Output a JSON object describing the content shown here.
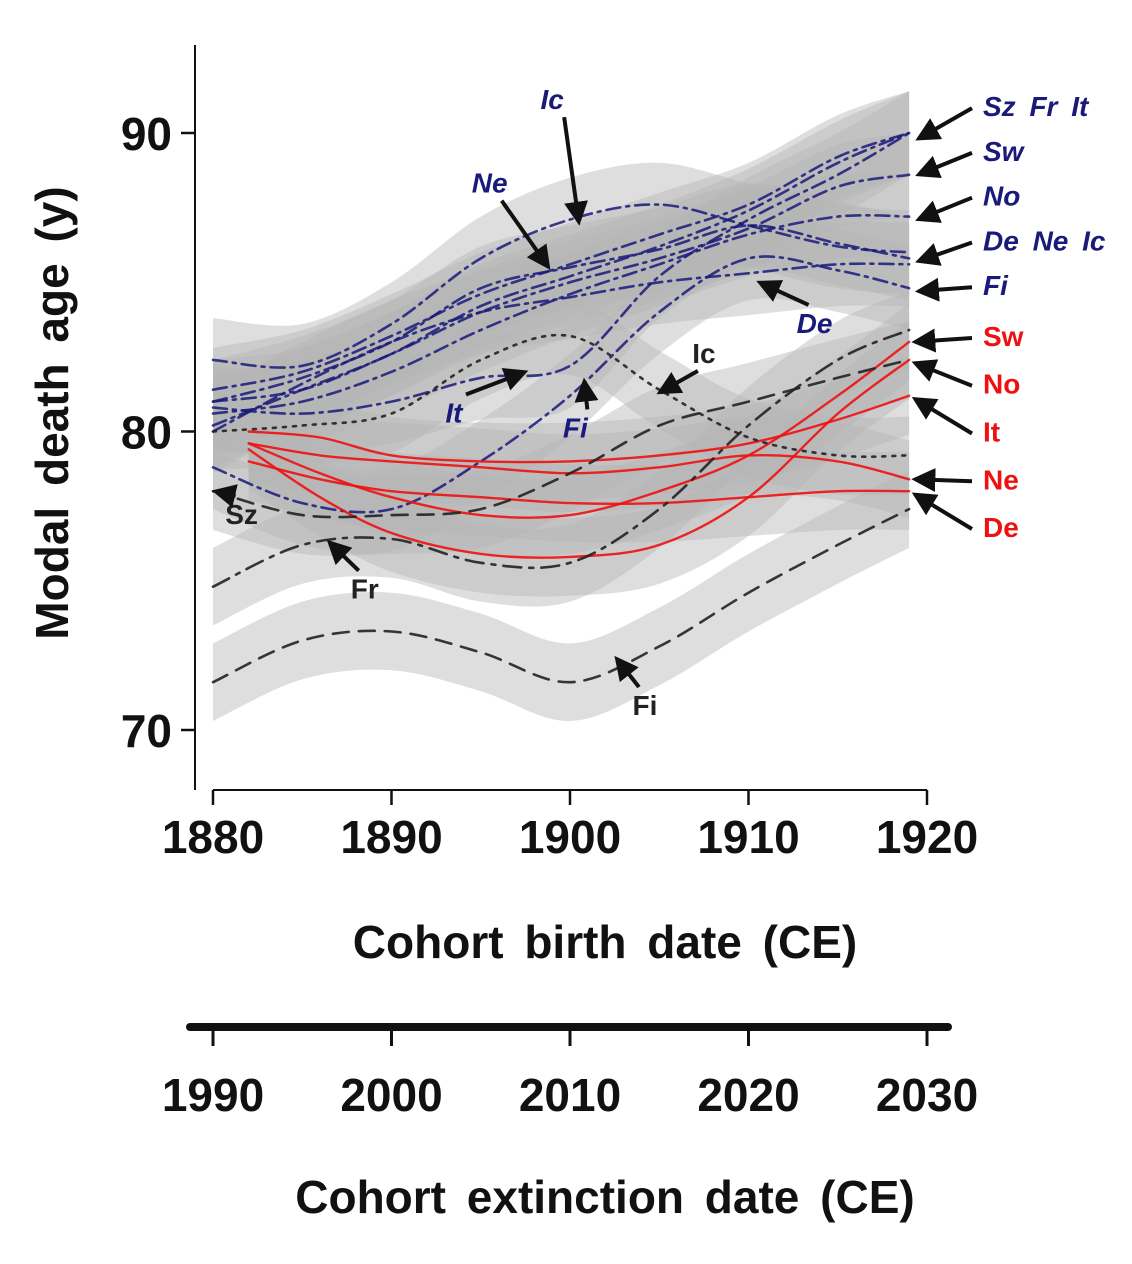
{
  "chart_data": {
    "type": "line",
    "xlabel": "Cohort birth date (CE)",
    "ylabel": "Modal death age (y)",
    "secondary_xlabel": "Cohort extinction date (CE)",
    "xlim": [
      1880,
      1920
    ],
    "ylim": [
      68,
      93
    ],
    "x_ticks": [
      1880,
      1890,
      1900,
      1910,
      1920
    ],
    "y_ticks": [
      70,
      80,
      90
    ],
    "secondary_x_ticks": [
      1990,
      2000,
      2010,
      2020,
      2030
    ],
    "colors": {
      "female": "#1a1a7a",
      "male_gaps": "#ee1111",
      "male": "#222222",
      "band": "#b5b5b5"
    },
    "groups": [
      {
        "name": "female",
        "color": "#1a1a7a",
        "labels": [
          "Sz Fr It",
          "Sw",
          "No",
          "De Ne Ic",
          "Fi"
        ],
        "series": [
          {
            "name": "Ic",
            "x": [
              1880,
              1885,
              1890,
              1895,
              1900,
              1905,
              1910,
              1915,
              1919
            ],
            "y": [
              82.4,
              82.2,
              83.6,
              85.8,
              87.1,
              87.6,
              86.9,
              86.2,
              86.0
            ]
          },
          {
            "name": "Ne",
            "x": [
              1880,
              1885,
              1890,
              1895,
              1900,
              1905,
              1910,
              1915,
              1919
            ],
            "y": [
              81.0,
              81.8,
              83.0,
              84.8,
              85.5,
              86.1,
              86.9,
              86.3,
              85.8
            ]
          },
          {
            "name": "It",
            "x": [
              1880,
              1885,
              1890,
              1895,
              1900,
              1905,
              1910,
              1915,
              1919
            ],
            "y": [
              80.8,
              80.6,
              81.0,
              81.8,
              82.2,
              85.2,
              87.1,
              88.6,
              90.0
            ]
          },
          {
            "name": "Fi",
            "x": [
              1880,
              1885,
              1890,
              1895,
              1900,
              1905,
              1910,
              1915,
              1919
            ],
            "y": [
              78.8,
              77.6,
              77.4,
              79.0,
              81.2,
              84.0,
              85.8,
              85.4,
              84.8
            ]
          },
          {
            "name": "De",
            "x": [
              1880,
              1885,
              1890,
              1895,
              1900,
              1905,
              1910,
              1915,
              1919
            ],
            "y": [
              80.0,
              81.6,
              83.0,
              84.0,
              84.5,
              85.0,
              85.3,
              85.6,
              85.6
            ]
          },
          {
            "name": "Sz",
            "x": [
              1880,
              1885,
              1890,
              1895,
              1900,
              1905,
              1910,
              1915,
              1919
            ],
            "y": [
              80.2,
              81.4,
              82.6,
              84.2,
              85.2,
              86.2,
              87.4,
              89.0,
              90.0
            ]
          },
          {
            "name": "Fr",
            "x": [
              1880,
              1885,
              1890,
              1895,
              1900,
              1905,
              1910,
              1915,
              1919
            ],
            "y": [
              81.4,
              82.0,
              83.2,
              84.6,
              85.6,
              86.6,
              87.6,
              89.2,
              90.0
            ]
          },
          {
            "name": "Sw",
            "x": [
              1880,
              1885,
              1890,
              1895,
              1900,
              1905,
              1910,
              1915,
              1919
            ],
            "y": [
              81.0,
              81.4,
              82.6,
              84.0,
              85.0,
              85.8,
              86.8,
              88.2,
              88.6
            ]
          },
          {
            "name": "No",
            "x": [
              1880,
              1885,
              1890,
              1895,
              1900,
              1905,
              1910,
              1915,
              1919
            ],
            "y": [
              80.6,
              81.0,
              82.0,
              83.4,
              84.6,
              85.6,
              86.6,
              87.2,
              87.2
            ]
          }
        ]
      },
      {
        "name": "male_gap",
        "color": "#ee1111",
        "labels": [
          "Sw",
          "No",
          "It",
          "Ne",
          "De"
        ],
        "series": [
          {
            "name": "Sw",
            "x": [
              1882,
              1886,
              1890,
              1895,
              1900,
              1905,
              1910,
              1915,
              1919
            ],
            "y": [
              79.6,
              78.6,
              77.8,
              77.2,
              77.2,
              78.0,
              79.2,
              81.2,
              83.0
            ]
          },
          {
            "name": "No",
            "x": [
              1882,
              1886,
              1890,
              1895,
              1900,
              1905,
              1910,
              1915,
              1919
            ],
            "y": [
              79.4,
              77.8,
              76.6,
              75.9,
              75.8,
              76.2,
              77.8,
              80.6,
              82.4
            ]
          },
          {
            "name": "It",
            "x": [
              1882,
              1886,
              1890,
              1895,
              1900,
              1905,
              1910,
              1915,
              1919
            ],
            "y": [
              80.0,
              79.8,
              79.2,
              79.0,
              79.0,
              79.2,
              79.6,
              80.4,
              81.2
            ]
          },
          {
            "name": "Ne",
            "x": [
              1882,
              1886,
              1890,
              1895,
              1900,
              1905,
              1910,
              1915,
              1919
            ],
            "y": [
              79.6,
              79.2,
              79.0,
              78.8,
              78.6,
              78.8,
              79.2,
              79.0,
              78.4
            ]
          },
          {
            "name": "De",
            "x": [
              1882,
              1886,
              1890,
              1895,
              1900,
              1905,
              1910,
              1915,
              1919
            ],
            "y": [
              79.0,
              78.4,
              78.0,
              77.8,
              77.6,
              77.6,
              77.8,
              78.0,
              78.0
            ]
          }
        ]
      },
      {
        "name": "male",
        "color": "#222222",
        "labels": [
          "Sz",
          "Fr",
          "Ic",
          "Fi"
        ],
        "series": [
          {
            "name": "Sz",
            "x": [
              1880,
              1885,
              1890,
              1895,
              1900,
              1905,
              1910,
              1915,
              1919
            ],
            "y": [
              78.0,
              77.2,
              77.2,
              77.4,
              78.6,
              80.2,
              81.0,
              81.8,
              82.4
            ]
          },
          {
            "name": "Fr",
            "x": [
              1880,
              1885,
              1890,
              1895,
              1900,
              1905,
              1910,
              1915,
              1919
            ],
            "y": [
              74.8,
              76.2,
              76.4,
              75.6,
              75.6,
              77.4,
              80.2,
              82.4,
              83.4
            ]
          },
          {
            "name": "Ic",
            "x": [
              1880,
              1885,
              1890,
              1895,
              1900,
              1905,
              1910,
              1915,
              1919
            ],
            "y": [
              80.0,
              80.2,
              80.6,
              82.4,
              83.2,
              81.4,
              79.8,
              79.2,
              79.2
            ]
          },
          {
            "name": "Fi",
            "x": [
              1880,
              1885,
              1890,
              1895,
              1900,
              1905,
              1910,
              1915,
              1919
            ],
            "y": [
              71.6,
              73.0,
              73.3,
              72.6,
              71.6,
              72.8,
              74.6,
              76.2,
              77.4
            ]
          }
        ]
      }
    ],
    "annotations": [
      {
        "text": "Ic",
        "group": "female",
        "italic": true,
        "x": 1899,
        "y": 90.8,
        "arrow_to": [
          1900.5,
          87.0
        ]
      },
      {
        "text": "Ne",
        "group": "female",
        "italic": true,
        "x": 1895.5,
        "y": 88.0,
        "arrow_to": [
          1898.8,
          85.5
        ]
      },
      {
        "text": "It",
        "group": "female",
        "italic": true,
        "x": 1893.5,
        "y": 80.3,
        "arrow_to": [
          1897.5,
          82.0
        ]
      },
      {
        "text": "Fi",
        "group": "female",
        "italic": true,
        "x": 1900.3,
        "y": 79.8,
        "arrow_to": [
          1900.8,
          81.7
        ]
      },
      {
        "text": "De",
        "group": "female",
        "italic": true,
        "x": 1913.7,
        "y": 83.3,
        "arrow_to": [
          1910.6,
          85.0
        ]
      },
      {
        "text": "Ic",
        "group": "male",
        "italic": false,
        "x": 1907.5,
        "y": 82.3,
        "arrow_to": [
          1905,
          81.3
        ]
      },
      {
        "text": "Sz",
        "group": "male",
        "italic": false,
        "x": 1881.6,
        "y": 76.9,
        "arrow_to": [
          1880.1,
          78.0
        ]
      },
      {
        "text": "Fr",
        "group": "male",
        "italic": false,
        "x": 1888.5,
        "y": 74.4,
        "arrow_to": [
          1886.5,
          76.3
        ]
      },
      {
        "text": "Fi",
        "group": "male",
        "italic": false,
        "x": 1904.2,
        "y": 70.5,
        "arrow_to": [
          1902.6,
          72.4
        ]
      }
    ],
    "right_labels": [
      {
        "text": "Sz Fr It",
        "group": "female",
        "italic": true,
        "y": 90.9,
        "arrow_to": [
          1919.5,
          89.8
        ]
      },
      {
        "text": "Sw",
        "group": "female",
        "italic": true,
        "y": 89.4,
        "arrow_to": [
          1919.5,
          88.6
        ]
      },
      {
        "text": "No",
        "group": "female",
        "italic": true,
        "y": 87.9,
        "arrow_to": [
          1919.5,
          87.1
        ]
      },
      {
        "text": "De Ne Ic",
        "group": "female",
        "italic": true,
        "y": 86.4,
        "arrow_to": [
          1919.5,
          85.7
        ]
      },
      {
        "text": "Fi",
        "group": "female",
        "italic": true,
        "y": 84.9,
        "arrow_to": [
          1919.5,
          84.7
        ]
      },
      {
        "text": "Sw",
        "group": "male_gap",
        "italic": false,
        "y": 83.2,
        "arrow_to": [
          1919.3,
          83.0
        ]
      },
      {
        "text": "No",
        "group": "male_gap",
        "italic": false,
        "y": 81.6,
        "arrow_to": [
          1919.3,
          82.3
        ]
      },
      {
        "text": "It",
        "group": "male_gap",
        "italic": false,
        "y": 80.0,
        "arrow_to": [
          1919.3,
          81.1
        ]
      },
      {
        "text": "Ne",
        "group": "male_gap",
        "italic": false,
        "y": 78.4,
        "arrow_to": [
          1919.3,
          78.4
        ]
      },
      {
        "text": "De",
        "group": "male_gap",
        "italic": false,
        "y": 76.8,
        "arrow_to": [
          1919.3,
          77.9
        ]
      }
    ],
    "grid": false,
    "legend": "none"
  }
}
